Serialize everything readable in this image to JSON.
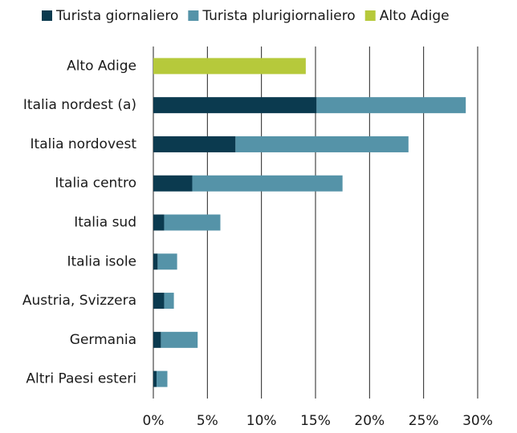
{
  "chart_data": {
    "type": "stacked_barh",
    "categories": [
      "Alto Adige",
      "Italia nordest (a)",
      "Italia nordovest",
      "Italia centro",
      "Italia sud",
      "Italia isole",
      "Austria, Svizzera",
      "Germania",
      "Altri Paesi esteri"
    ],
    "series": [
      {
        "name": "Turista giornaliero",
        "color": "#0b3a4f",
        "values": [
          null,
          15.1,
          7.6,
          3.6,
          1.0,
          0.4,
          1.0,
          0.7,
          0.3
        ]
      },
      {
        "name": "Turista plurigiornaliero",
        "color": "#5593a8",
        "values": [
          null,
          13.8,
          16.0,
          13.9,
          5.2,
          1.8,
          0.9,
          3.4,
          1.0
        ]
      },
      {
        "name": "Alto Adige",
        "color": "#b6c93b",
        "values": [
          14.1,
          null,
          null,
          null,
          null,
          null,
          null,
          null,
          null
        ]
      }
    ],
    "xlim": [
      0,
      30
    ],
    "xticks": [
      {
        "value": 0,
        "label": "0%"
      },
      {
        "value": 5,
        "label": "5%"
      },
      {
        "value": 10,
        "label": "10%"
      },
      {
        "value": 15,
        "label": "15%"
      },
      {
        "value": 20,
        "label": "20%"
      },
      {
        "value": 25,
        "label": "25%"
      },
      {
        "value": 30,
        "label": "30%"
      }
    ],
    "grid": true,
    "legend": "top"
  }
}
